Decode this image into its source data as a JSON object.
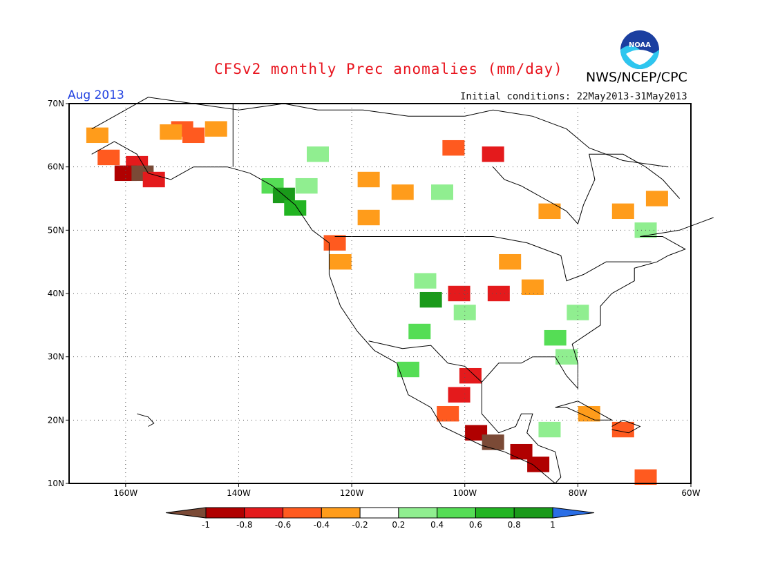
{
  "header": {
    "title": "CFSv2 monthly Prec anomalies (mm/day)",
    "org": "NWS/NCEP/CPC",
    "logo_text": "NOAA",
    "month": "Aug 2013",
    "initial_conditions": "Initial conditions: 22May2013-31May2013"
  },
  "map": {
    "lon_range": [
      -170,
      -60
    ],
    "lat_range": [
      10,
      70
    ],
    "lon_ticks": [
      "160W",
      "140W",
      "120W",
      "100W",
      "80W",
      "60W"
    ],
    "lat_ticks": [
      "70N",
      "60N",
      "50N",
      "40N",
      "30N",
      "20N",
      "10N"
    ],
    "grid": "dotted"
  },
  "legend": {
    "colors": [
      "#7b4a36",
      "#b00000",
      "#e41a1c",
      "#ff5a1f",
      "#ff9c1b",
      "#ffffff",
      "#90ee90",
      "#55dd55",
      "#22b422",
      "#1a9a1a",
      "#2a6ee6"
    ],
    "labels": [
      "-1",
      "-0.8",
      "-0.6",
      "-0.4",
      "-0.2",
      "0.2",
      "0.4",
      "0.6",
      "0.8",
      "1"
    ]
  },
  "anomaly_cells": [
    {
      "lon": -158,
      "lat": 60.5,
      "v": -0.7
    },
    {
      "lon": -160,
      "lat": 59,
      "v": -0.9
    },
    {
      "lon": -157,
      "lat": 59,
      "v": -1.0
    },
    {
      "lon": -163,
      "lat": 61.5,
      "v": -0.5
    },
    {
      "lon": -155,
      "lat": 58,
      "v": -0.6
    },
    {
      "lon": -165,
      "lat": 65,
      "v": -0.3
    },
    {
      "lon": -150,
      "lat": 66,
      "v": -0.5
    },
    {
      "lon": -148,
      "lat": 65,
      "v": -0.5
    },
    {
      "lon": -152,
      "lat": 65.5,
      "v": -0.3
    },
    {
      "lon": -144,
      "lat": 66,
      "v": -0.3
    },
    {
      "lon": -134,
      "lat": 57,
      "v": 0.5
    },
    {
      "lon": -132,
      "lat": 55.5,
      "v": 1.0
    },
    {
      "lon": -130,
      "lat": 53.5,
      "v": 0.7
    },
    {
      "lon": -128,
      "lat": 57,
      "v": 0.3
    },
    {
      "lon": -126,
      "lat": 62,
      "v": 0.3
    },
    {
      "lon": -123,
      "lat": 48,
      "v": -0.5
    },
    {
      "lon": -122,
      "lat": 45,
      "v": -0.3
    },
    {
      "lon": -117,
      "lat": 52,
      "v": -0.3
    },
    {
      "lon": -107,
      "lat": 42,
      "v": 0.4
    },
    {
      "lon": -106,
      "lat": 39,
      "v": 0.9
    },
    {
      "lon": -108,
      "lat": 34,
      "v": 0.6
    },
    {
      "lon": -110,
      "lat": 28,
      "v": 0.6
    },
    {
      "lon": -101,
      "lat": 40,
      "v": -0.6
    },
    {
      "lon": -94,
      "lat": 40,
      "v": -0.7
    },
    {
      "lon": -88,
      "lat": 41,
      "v": -0.3
    },
    {
      "lon": -84,
      "lat": 33,
      "v": 0.6
    },
    {
      "lon": -82,
      "lat": 30,
      "v": 0.3
    },
    {
      "lon": -99,
      "lat": 27,
      "v": -0.6
    },
    {
      "lon": -101,
      "lat": 24,
      "v": -0.7
    },
    {
      "lon": -103,
      "lat": 21,
      "v": -0.5
    },
    {
      "lon": -98,
      "lat": 18,
      "v": -0.9
    },
    {
      "lon": -95,
      "lat": 16.5,
      "v": -1.0
    },
    {
      "lon": -90,
      "lat": 15,
      "v": -0.9
    },
    {
      "lon": -87,
      "lat": 13,
      "v": -0.8
    },
    {
      "lon": -85,
      "lat": 18.5,
      "v": 0.3
    },
    {
      "lon": -78,
      "lat": 21,
      "v": -0.3
    },
    {
      "lon": -72,
      "lat": 18.5,
      "v": -0.4
    },
    {
      "lon": -68,
      "lat": 11,
      "v": -0.4
    },
    {
      "lon": -102,
      "lat": 63,
      "v": -0.4
    },
    {
      "lon": -95,
      "lat": 62,
      "v": -0.6
    },
    {
      "lon": -85,
      "lat": 53,
      "v": -0.3
    },
    {
      "lon": -72,
      "lat": 53,
      "v": -0.3
    },
    {
      "lon": -68,
      "lat": 50,
      "v": 0.3
    },
    {
      "lon": -66,
      "lat": 55,
      "v": -0.3
    },
    {
      "lon": -104,
      "lat": 56,
      "v": 0.3
    },
    {
      "lon": -111,
      "lat": 56,
      "v": -0.3
    },
    {
      "lon": -117,
      "lat": 58,
      "v": -0.3
    },
    {
      "lon": -100,
      "lat": 37,
      "v": 0.3
    },
    {
      "lon": -92,
      "lat": 45,
      "v": -0.3
    },
    {
      "lon": -80,
      "lat": 37,
      "v": 0.3
    }
  ]
}
